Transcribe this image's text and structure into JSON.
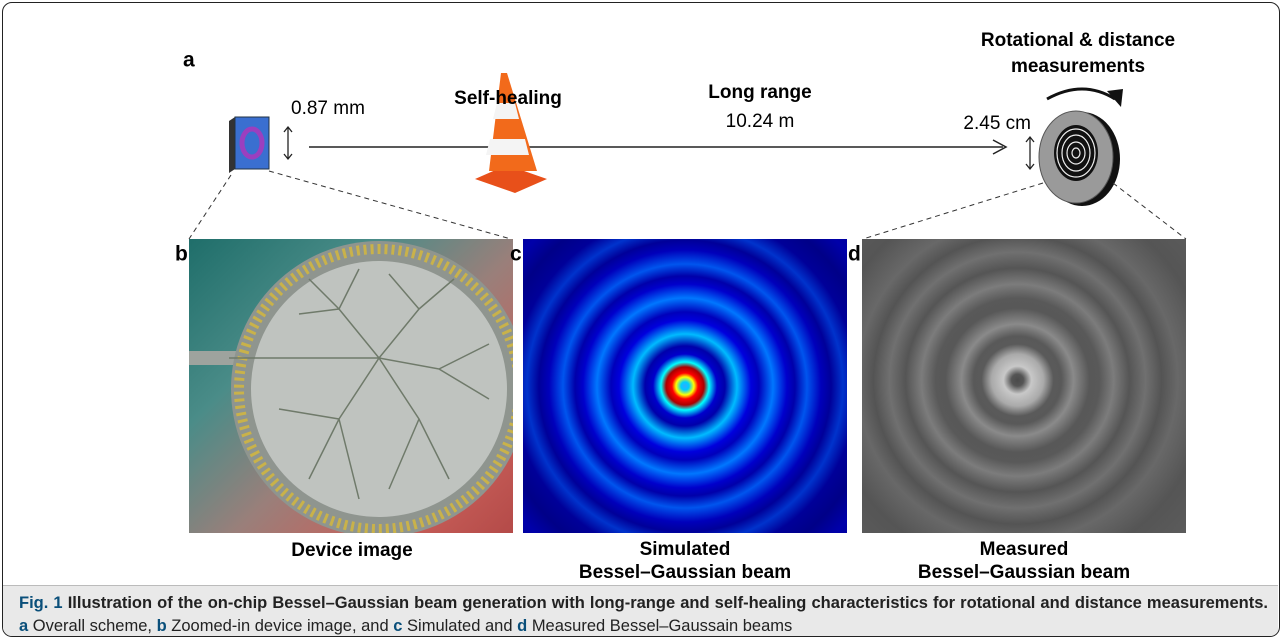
{
  "panel_a": {
    "label": "a",
    "self_healing": "Self-healing",
    "long_range": "Long range",
    "distance": "10.24 m",
    "chip_size": "0.87 mm",
    "target_size": "2.45 cm",
    "measurements_title": [
      "Rotational & distance",
      "measurements"
    ]
  },
  "panel_b": {
    "label": "b",
    "caption": "Device image"
  },
  "panel_c": {
    "label": "c",
    "caption": [
      "Simulated",
      "Bessel–Gaussian beam"
    ]
  },
  "panel_d": {
    "label": "d",
    "caption": [
      "Measured",
      "Bessel–Gaussian beam"
    ]
  },
  "figure_caption": {
    "number": "Fig. 1",
    "title": "Illustration of the on-chip Bessel–Gaussian beam generation with long-range and self-healing characteristics for rotational and distance measurements.",
    "parts": [
      {
        "label": "a",
        "text": "Overall scheme,"
      },
      {
        "label": "b",
        "text": "Zoomed-in device image, and"
      },
      {
        "label": "c",
        "text": "Simulated and"
      },
      {
        "label": "d",
        "text": "Measured Bessel–Gaussain beams"
      }
    ]
  }
}
